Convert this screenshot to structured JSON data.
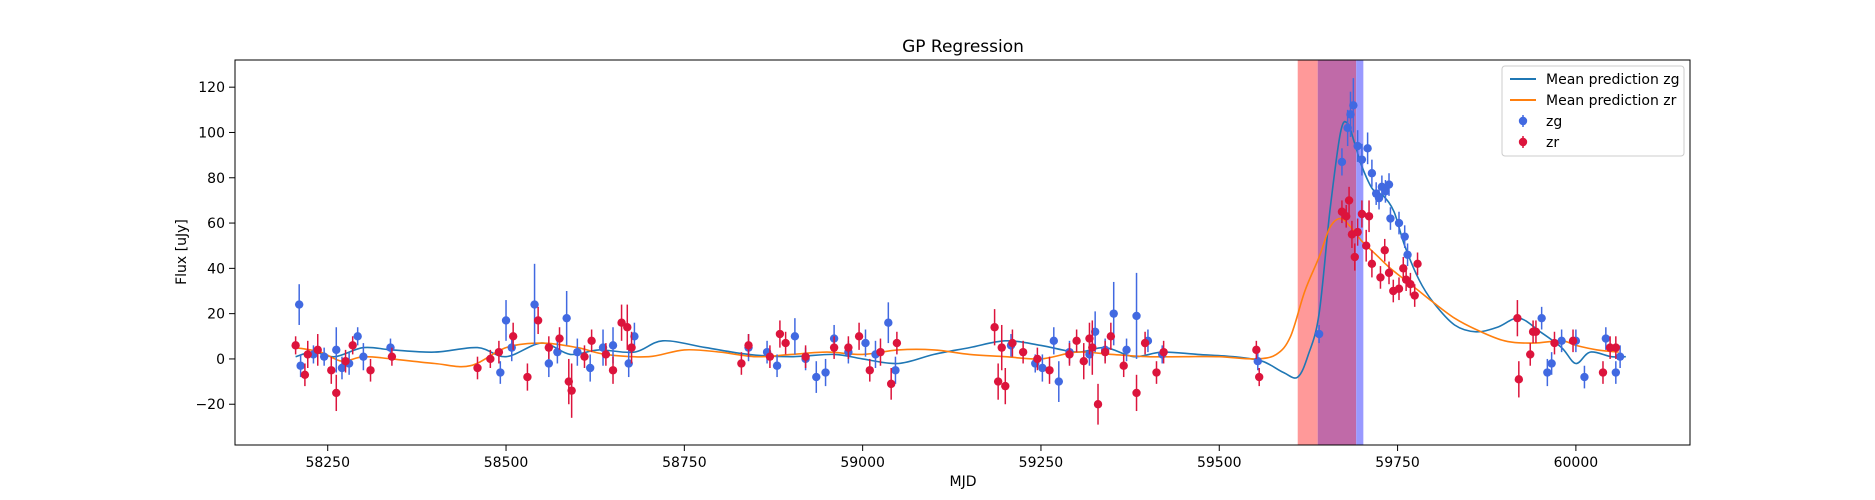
{
  "chart_data": {
    "type": "scatter",
    "title": "GP Regression",
    "xlabel": "MJD",
    "ylabel": "Flux [uJy]",
    "xlim": [
      58120,
      60160
    ],
    "ylim": [
      -38,
      132
    ],
    "xticks": [
      58250,
      58500,
      58750,
      59000,
      59250,
      59500,
      59750,
      60000
    ],
    "yticks": [
      -20,
      0,
      20,
      40,
      60,
      80,
      100,
      120
    ],
    "legend": {
      "placement": "top-right",
      "entries": [
        "Mean prediction zg",
        "Mean prediction zr",
        "zg",
        "zr"
      ]
    },
    "colors": {
      "zg_line": "#1f77b4",
      "zr_line": "#ff7f0e",
      "zg_points": "#4169e1",
      "zr_points": "#dc143c",
      "span_red": "#ff9999",
      "span_blue": "#9999ff",
      "span_overlap": "#c06aa8"
    },
    "spans": [
      {
        "x0": 59610,
        "x1": 59692,
        "color": "red"
      },
      {
        "x0": 59638,
        "x1": 59702,
        "color": "blue"
      }
    ],
    "series": [
      {
        "name": "Mean prediction zg",
        "kind": "line",
        "x": [
          58205,
          58230,
          58260,
          58300,
          58340,
          58400,
          58460,
          58500,
          58550,
          58590,
          58630,
          58680,
          58720,
          58780,
          58840,
          58900,
          58960,
          59000,
          59050,
          59100,
          59150,
          59200,
          59250,
          59300,
          59340,
          59380,
          59420,
          59470,
          59520,
          59560,
          59590,
          59610,
          59625,
          59640,
          59655,
          59670,
          59680,
          59690,
          59700,
          59715,
          59730,
          59745,
          59760,
          59780,
          59800,
          59830,
          59860,
          59890,
          59920,
          59950,
          59980,
          60000,
          60020,
          60050,
          60070
        ],
        "y": [
          1,
          3,
          1,
          5,
          4,
          3,
          5,
          1,
          7,
          2,
          4,
          3,
          8,
          5,
          2,
          1,
          2,
          0,
          -2,
          2,
          5,
          8,
          6,
          3,
          5,
          1,
          3,
          2,
          1,
          -1,
          -6,
          -8,
          2,
          20,
          65,
          100,
          104,
          95,
          85,
          75,
          72,
          65,
          50,
          35,
          25,
          15,
          12,
          14,
          18,
          12,
          5,
          -2,
          3,
          1,
          1
        ]
      },
      {
        "name": "Mean prediction zr",
        "kind": "line",
        "x": [
          58205,
          58240,
          58270,
          58300,
          58340,
          58400,
          58450,
          58500,
          58550,
          58600,
          58640,
          58700,
          58750,
          58800,
          58850,
          58900,
          58950,
          59000,
          59050,
          59100,
          59150,
          59200,
          59250,
          59300,
          59350,
          59400,
          59450,
          59500,
          59550,
          59580,
          59600,
          59620,
          59640,
          59655,
          59670,
          59685,
          59700,
          59720,
          59740,
          59760,
          59780,
          59800,
          59830,
          59860,
          59900,
          59940,
          59980,
          60000,
          60030,
          60060
        ],
        "y": [
          5,
          3,
          -1,
          1,
          0,
          -2,
          -3,
          5,
          7,
          5,
          2,
          1,
          4,
          3,
          1,
          2,
          3,
          2,
          4,
          4,
          2,
          1,
          0,
          3,
          2,
          1,
          1,
          1,
          0,
          2,
          10,
          30,
          45,
          58,
          62,
          58,
          52,
          46,
          40,
          35,
          30,
          25,
          18,
          13,
          8,
          7,
          8,
          6,
          4,
          3
        ]
      },
      {
        "name": "zg",
        "kind": "errorbar",
        "points": [
          [
            58210,
            24,
            9
          ],
          [
            58212,
            -3,
            5
          ],
          [
            58230,
            2,
            4
          ],
          [
            58245,
            1,
            4
          ],
          [
            58262,
            4,
            10
          ],
          [
            58270,
            -4,
            5
          ],
          [
            58280,
            -2,
            5
          ],
          [
            58292,
            10,
            4
          ],
          [
            58300,
            1,
            6
          ],
          [
            58338,
            5,
            4
          ],
          [
            58492,
            -6,
            5
          ],
          [
            58500,
            17,
            9
          ],
          [
            58508,
            5,
            6
          ],
          [
            58540,
            24,
            18
          ],
          [
            58560,
            -2,
            6
          ],
          [
            58572,
            3,
            5
          ],
          [
            58585,
            18,
            12
          ],
          [
            58600,
            3,
            6
          ],
          [
            58618,
            -4,
            6
          ],
          [
            58636,
            5,
            8
          ],
          [
            58650,
            6,
            8
          ],
          [
            58672,
            -2,
            6
          ],
          [
            58680,
            10,
            6
          ],
          [
            58840,
            5,
            6
          ],
          [
            58866,
            3,
            5
          ],
          [
            58880,
            -3,
            5
          ],
          [
            58905,
            10,
            8
          ],
          [
            58920,
            0,
            5
          ],
          [
            58935,
            -8,
            7
          ],
          [
            58948,
            -6,
            6
          ],
          [
            58960,
            9,
            6
          ],
          [
            58980,
            3,
            5
          ],
          [
            59004,
            7,
            6
          ],
          [
            59018,
            2,
            6
          ],
          [
            59036,
            16,
            9
          ],
          [
            59046,
            -5,
            6
          ],
          [
            59208,
            6,
            5
          ],
          [
            59242,
            -2,
            4
          ],
          [
            59252,
            -4,
            6
          ],
          [
            59268,
            8,
            6
          ],
          [
            59275,
            -10,
            9
          ],
          [
            59290,
            3,
            5
          ],
          [
            59318,
            2,
            5
          ],
          [
            59326,
            12,
            9
          ],
          [
            59340,
            4,
            5
          ],
          [
            59352,
            20,
            14
          ],
          [
            59370,
            4,
            5
          ],
          [
            59384,
            19,
            19
          ],
          [
            59400,
            8,
            5
          ],
          [
            59420,
            2,
            4
          ],
          [
            59554,
            -1,
            4
          ],
          [
            59640,
            11,
            4
          ],
          [
            59672,
            87,
            6
          ],
          [
            59680,
            102,
            8
          ],
          [
            59684,
            108,
            10
          ],
          [
            59688,
            112,
            12
          ],
          [
            59694,
            94,
            7
          ],
          [
            59700,
            88,
            7
          ],
          [
            59708,
            93,
            7
          ],
          [
            59714,
            82,
            6
          ],
          [
            59720,
            73,
            5
          ],
          [
            59724,
            71,
            5
          ],
          [
            59728,
            76,
            5
          ],
          [
            59733,
            74,
            5
          ],
          [
            59738,
            77,
            5
          ],
          [
            59740,
            62,
            5
          ],
          [
            59752,
            60,
            5
          ],
          [
            59760,
            54,
            5
          ],
          [
            59764,
            46,
            5
          ],
          [
            59952,
            18,
            5
          ],
          [
            59960,
            -6,
            6
          ],
          [
            59966,
            -2,
            5
          ],
          [
            59980,
            8,
            5
          ],
          [
            60000,
            8,
            5
          ],
          [
            60012,
            -8,
            5
          ],
          [
            60042,
            9,
            5
          ],
          [
            60056,
            -6,
            5
          ],
          [
            60062,
            1,
            5
          ]
        ]
      },
      {
        "name": "zr",
        "kind": "errorbar",
        "points": [
          [
            58205,
            6,
            4
          ],
          [
            58218,
            -7,
            5
          ],
          [
            58222,
            2,
            6
          ],
          [
            58236,
            4,
            7
          ],
          [
            58255,
            -5,
            6
          ],
          [
            58262,
            -15,
            8
          ],
          [
            58275,
            -1,
            5
          ],
          [
            58285,
            6,
            4
          ],
          [
            58310,
            -5,
            5
          ],
          [
            58340,
            1,
            4
          ],
          [
            58460,
            -4,
            5
          ],
          [
            58478,
            0,
            4
          ],
          [
            58490,
            3,
            5
          ],
          [
            58510,
            10,
            6
          ],
          [
            58530,
            -8,
            6
          ],
          [
            58545,
            17,
            6
          ],
          [
            58560,
            5,
            5
          ],
          [
            58575,
            9,
            5
          ],
          [
            58588,
            -10,
            10
          ],
          [
            58592,
            -14,
            12
          ],
          [
            58610,
            1,
            5
          ],
          [
            58620,
            8,
            5
          ],
          [
            58640,
            2,
            5
          ],
          [
            58650,
            -5,
            6
          ],
          [
            58662,
            16,
            8
          ],
          [
            58670,
            14,
            10
          ],
          [
            58676,
            5,
            7
          ],
          [
            58830,
            -2,
            5
          ],
          [
            58840,
            6,
            5
          ],
          [
            58870,
            1,
            5
          ],
          [
            58884,
            11,
            6
          ],
          [
            58892,
            7,
            5
          ],
          [
            58920,
            1,
            5
          ],
          [
            58960,
            5,
            5
          ],
          [
            58980,
            5,
            5
          ],
          [
            58995,
            10,
            6
          ],
          [
            59010,
            -5,
            5
          ],
          [
            59025,
            3,
            6
          ],
          [
            59040,
            -11,
            7
          ],
          [
            59048,
            7,
            5
          ],
          [
            59185,
            14,
            8
          ],
          [
            59190,
            -10,
            8
          ],
          [
            59195,
            5,
            10
          ],
          [
            59200,
            -12,
            8
          ],
          [
            59210,
            7,
            6
          ],
          [
            59225,
            3,
            5
          ],
          [
            59245,
            0,
            5
          ],
          [
            59262,
            -5,
            6
          ],
          [
            59290,
            2,
            5
          ],
          [
            59300,
            8,
            5
          ],
          [
            59310,
            -1,
            8
          ],
          [
            59318,
            9,
            7
          ],
          [
            59322,
            5,
            12
          ],
          [
            59330,
            -20,
            9
          ],
          [
            59340,
            3,
            5
          ],
          [
            59348,
            10,
            6
          ],
          [
            59366,
            -3,
            5
          ],
          [
            59384,
            -15,
            8
          ],
          [
            59396,
            7,
            5
          ],
          [
            59412,
            -6,
            5
          ],
          [
            59422,
            3,
            5
          ],
          [
            59552,
            4,
            4
          ],
          [
            59556,
            -8,
            4
          ],
          [
            59672,
            65,
            5
          ],
          [
            59678,
            63,
            5
          ],
          [
            59682,
            70,
            6
          ],
          [
            59686,
            55,
            6
          ],
          [
            59690,
            45,
            6
          ],
          [
            59694,
            56,
            6
          ],
          [
            59700,
            64,
            6
          ],
          [
            59706,
            50,
            7
          ],
          [
            59710,
            63,
            7
          ],
          [
            59714,
            42,
            6
          ],
          [
            59726,
            36,
            5
          ],
          [
            59732,
            48,
            5
          ],
          [
            59738,
            38,
            5
          ],
          [
            59744,
            30,
            5
          ],
          [
            59752,
            31,
            5
          ],
          [
            59758,
            40,
            5
          ],
          [
            59762,
            35,
            5
          ],
          [
            59768,
            33,
            5
          ],
          [
            59774,
            28,
            5
          ],
          [
            59778,
            42,
            5
          ],
          [
            59918,
            18,
            8
          ],
          [
            59920,
            -9,
            8
          ],
          [
            59936,
            2,
            5
          ],
          [
            59940,
            12,
            5
          ],
          [
            59944,
            12,
            5
          ],
          [
            59970,
            7,
            5
          ],
          [
            59996,
            8,
            5
          ],
          [
            60038,
            -6,
            5
          ],
          [
            60048,
            5,
            5
          ],
          [
            60056,
            5,
            5
          ]
        ]
      }
    ]
  }
}
